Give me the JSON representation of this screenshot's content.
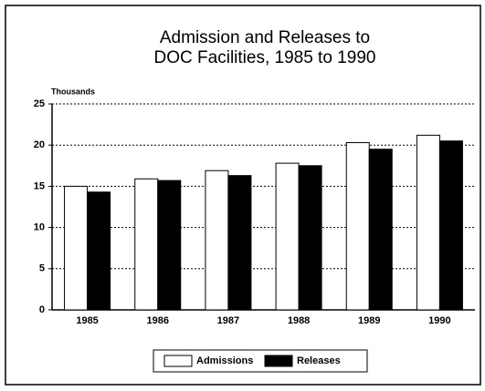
{
  "chart_data": {
    "type": "bar",
    "title": [
      "Admission and Releases to",
      "DOC Facilities, 1985 to 1990"
    ],
    "y_label": "Thousands",
    "categories": [
      "1985",
      "1986",
      "1987",
      "1988",
      "1989",
      "1990"
    ],
    "series": [
      {
        "name": "Admissions",
        "color": "#ffffff",
        "values": [
          15.0,
          15.9,
          16.9,
          17.8,
          20.3,
          21.2
        ]
      },
      {
        "name": "Releases",
        "color": "#000000",
        "values": [
          14.3,
          15.7,
          16.3,
          17.5,
          19.5,
          20.5
        ]
      }
    ],
    "ylim": [
      0,
      25
    ],
    "yticks": [
      0,
      5,
      10,
      15,
      20,
      25
    ],
    "grid": true,
    "legend": "bottom"
  }
}
